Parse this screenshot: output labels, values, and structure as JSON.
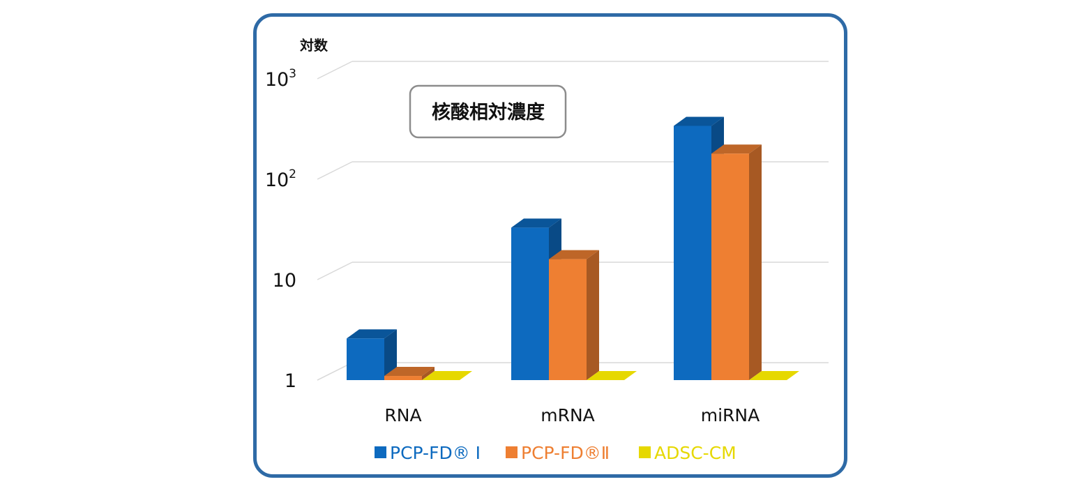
{
  "chart_data": {
    "type": "bar",
    "title": "核酸相対濃度",
    "ylabel": "対数",
    "yscale": "log",
    "ylim": [
      1,
      1000
    ],
    "yticks": [
      {
        "base": "1",
        "exp": ""
      },
      {
        "base": "10",
        "exp": ""
      },
      {
        "base": "10",
        "exp": "2"
      },
      {
        "base": "10",
        "exp": "3"
      }
    ],
    "ytick_values": [
      1,
      10,
      100,
      1000
    ],
    "categories": [
      "RNA",
      "mRNA",
      "miRNA"
    ],
    "series": [
      {
        "name": "PCP-FD® Ⅰ",
        "values": [
          2.6,
          33,
          340
        ],
        "color": "#0d6abf"
      },
      {
        "name": "PCP-FD®Ⅱ",
        "values": [
          1.1,
          16,
          180
        ],
        "color": "#ee7f32"
      },
      {
        "name": "ADSC-CM",
        "values": [
          1,
          1,
          1
        ],
        "color": "#e6d800"
      }
    ],
    "grid": true,
    "legend": "bottom"
  }
}
